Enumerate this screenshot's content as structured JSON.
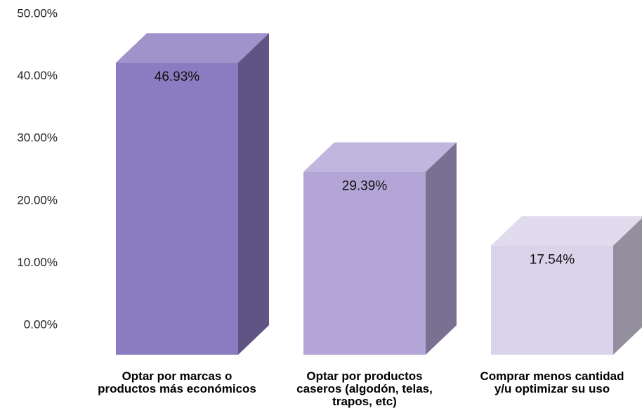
{
  "chart_data": {
    "type": "bar3d",
    "categories": [
      "Optar por marcas o productos más económicos",
      "Optar por productos caseros (algodón, telas, trapos, etc)",
      "Comprar menos cantidad y/u optimizar su uso"
    ],
    "values": [
      46.93,
      29.39,
      17.54
    ],
    "value_labels": [
      "46.93%",
      "29.39%",
      "17.54%"
    ],
    "colors": [
      "#8b7bc0",
      "#b3a6d7",
      "#dad3ea"
    ],
    "ylim": [
      0,
      50
    ],
    "yticks": [
      {
        "value": 0,
        "label": "0.00%"
      },
      {
        "value": 10,
        "label": "10.00%"
      },
      {
        "value": 20,
        "label": "20.00%"
      },
      {
        "value": 30,
        "label": "30.00%"
      },
      {
        "value": 40,
        "label": "40.00%"
      },
      {
        "value": 50,
        "label": "50.00%"
      }
    ],
    "grid": false
  }
}
